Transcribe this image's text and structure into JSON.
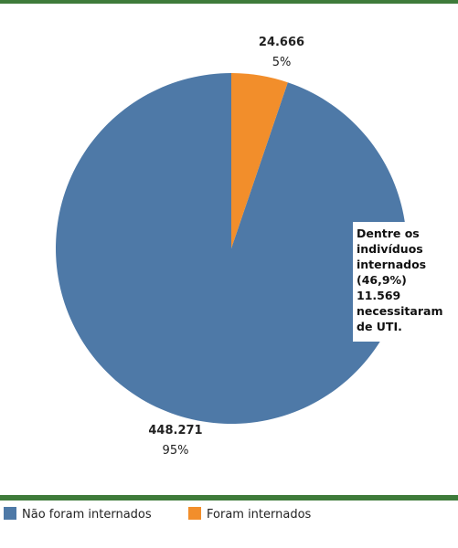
{
  "chart_data": {
    "type": "pie",
    "categories": [
      "Não foram internados",
      "Foram internados"
    ],
    "values": [
      448271,
      24666
    ],
    "value_labels": [
      "448.271",
      "24.666"
    ],
    "percent_labels": [
      "95%",
      "5%"
    ],
    "colors": [
      "#4e79a7",
      "#f28e2b"
    ],
    "annotation": "Dentre os indivíduos internados (46,9%) 11.569 necessitaram de UTI.",
    "legend": "bottom-left"
  }
}
